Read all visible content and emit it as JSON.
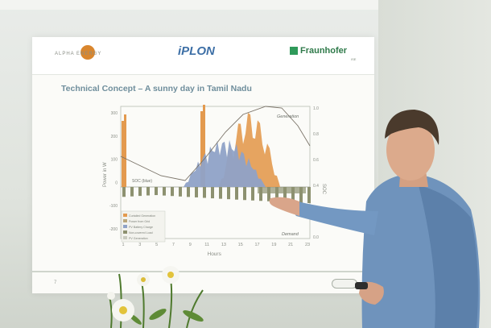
{
  "slide": {
    "logos": {
      "left_text": "ALPHA ENERGY",
      "center": "iPLON",
      "right": "Fraunhofer",
      "right_sub": "ISE"
    },
    "title": "Technical Concept – A sunny day in Tamil Nadu",
    "page_number": "7",
    "chart": {
      "xlabel": "Hours",
      "ylabel_left": "Power in W",
      "ylabel_right": "SOC",
      "x_ticks": [
        "1",
        "3",
        "5",
        "7",
        "9",
        "11",
        "13",
        "15",
        "17",
        "19",
        "21",
        "23"
      ],
      "y_ticks_left": [
        "300",
        "200",
        "100",
        "0",
        "-100",
        "-200"
      ],
      "y_ticks_right": [
        "1.0",
        "0.8",
        "0.6",
        "0.4",
        "0.2",
        "0.0"
      ],
      "annotations": {
        "generation": "Generation",
        "demand": "Demand",
        "soc": "SOC (blue)"
      },
      "legend": [
        "Curtailed Generation",
        "Power from Grid",
        "PV Battery Charge",
        "Non-covered Load",
        "PV Generation"
      ],
      "colors": {
        "orange": "#e39a4f",
        "blue": "#8fa2c7",
        "olive": "#8d9170",
        "line": "#7a7368"
      }
    }
  }
}
